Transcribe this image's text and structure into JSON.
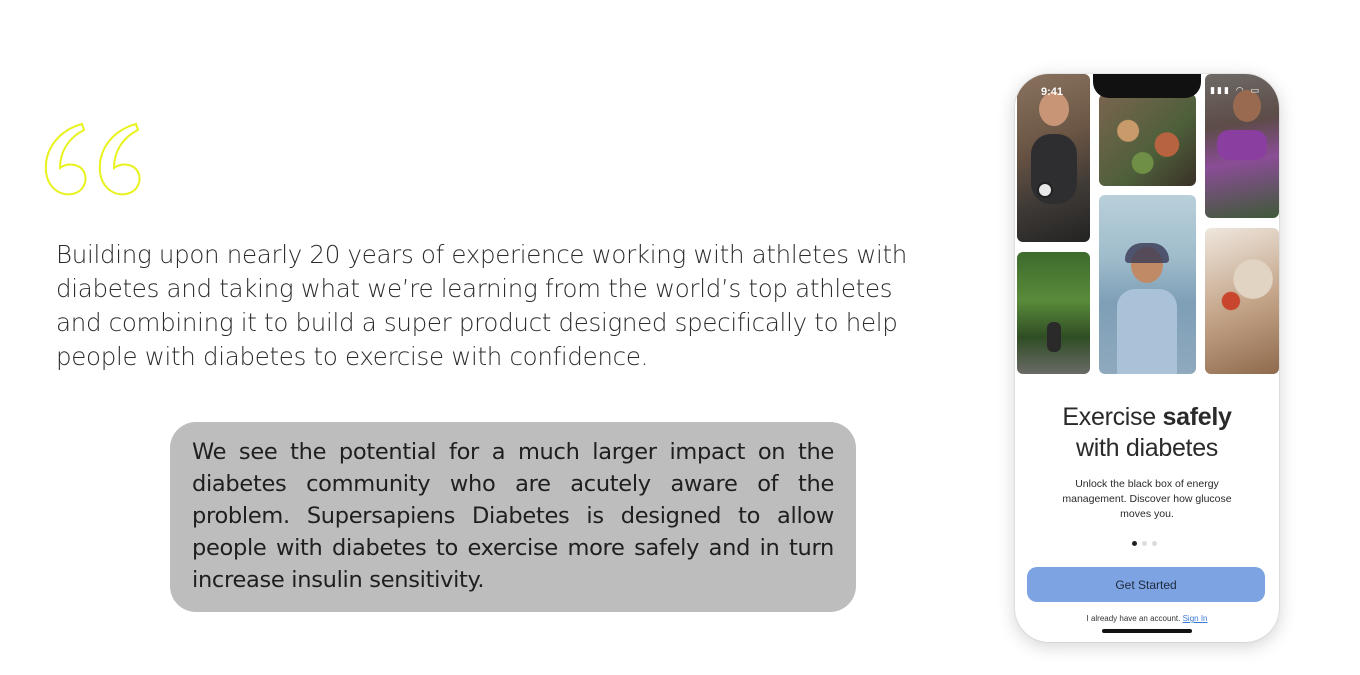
{
  "quote": {
    "text": "Building upon nearly 20 years of experience working with athletes with diabetes and taking what we’re learning from the world’s top athletes and combining it to build a super product designed specifically to help people with diabetes to exercise with confidence.",
    "accent_color": "#e8f21c"
  },
  "callout": {
    "text": "We see the potential for a much larger impact on the diabetes community who are acutely aware of the problem. Supersapiens Diabetes is designed to allow people with diabetes to exercise more safely and in turn increase insulin sensitivity.",
    "background": "#bdbdbd"
  },
  "phone": {
    "status_time": "9:41",
    "headline_pre": "Exercise ",
    "headline_bold": "safely",
    "headline_post": "with diabetes",
    "subtitle": "Unlock the black box of energy management. Discover how glucose moves you.",
    "cta_label": "Get Started",
    "cta_color": "#7ea3e3",
    "account_text": "I already have an account.",
    "signin_label": "Sign In",
    "carousel_active_index": 0,
    "carousel_count": 3
  }
}
